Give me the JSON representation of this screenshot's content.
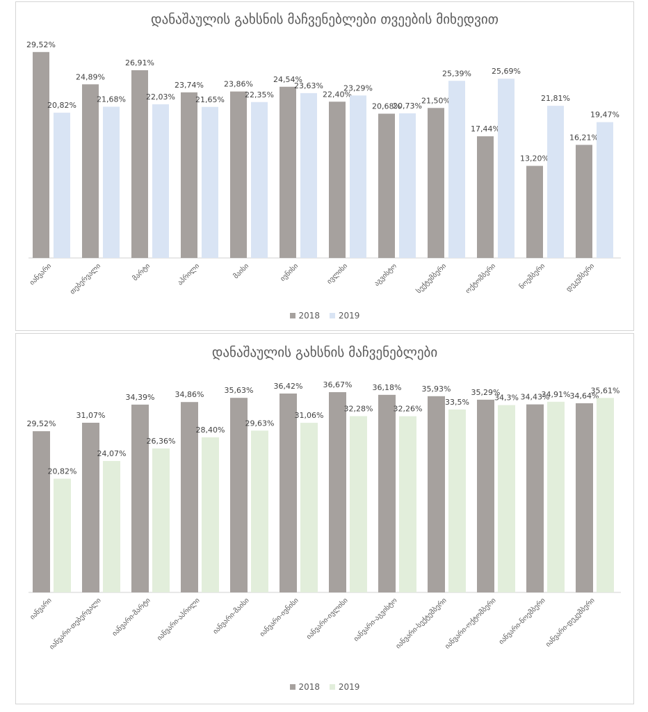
{
  "chart_data": [
    {
      "type": "bar",
      "title": "დანაშაულის გახსნის მაჩვენებლები თვეების მიხედვით",
      "categories": [
        "იანვარი",
        "თებერვალი",
        "მარტი",
        "აპრილი",
        "მაისი",
        "ივნისი",
        "ივლისი",
        "აგვისტო",
        "სექტემბერი",
        "ოქტომბერი",
        "ნოემბერი",
        "დეკემბერი"
      ],
      "series": [
        {
          "name": "2018",
          "color": "#a6a19e",
          "values": [
            29.52,
            24.89,
            26.91,
            23.74,
            23.86,
            24.54,
            22.4,
            20.68,
            21.5,
            17.44,
            13.2,
            16.21
          ],
          "labels": [
            "29,52%",
            "24,89%",
            "26,91%",
            "23,74%",
            "23,86%",
            "24,54%",
            "22,40%",
            "20,68%",
            "21,50%",
            "17,44%",
            "13,20%",
            "16,21%"
          ]
        },
        {
          "name": "2019",
          "color": "#d9e4f4",
          "values": [
            20.82,
            21.68,
            22.03,
            21.65,
            22.35,
            23.63,
            23.29,
            20.73,
            25.39,
            25.69,
            21.81,
            19.47
          ],
          "labels": [
            "20,82%",
            "21,68%",
            "22,03%",
            "21,65%",
            "22,35%",
            "23,63%",
            "23,29%",
            "20,73%",
            "25,39%",
            "25,69%",
            "21,81%",
            "19,47%"
          ]
        }
      ],
      "ylim": [
        0,
        30
      ],
      "grid": false,
      "legend": "bottom"
    },
    {
      "type": "bar",
      "title": "დანაშაულის გახსნის მაჩვენებლები",
      "categories": [
        "იანვარი",
        "იანვარი-თებერვალი",
        "იანვარი-მარტი",
        "იანვარი-აპრილი",
        "იანვარი-მაისი",
        "იანვარი-ივნისი",
        "იანვარი-ივლისი",
        "იანვარი-აგვისტო",
        "იანვარი-სექტემბერი",
        "იანვარი-ოქტომბერი",
        "იანვარი-ნოემბერი",
        "იანვარი-დეკემბერი"
      ],
      "series": [
        {
          "name": "2018",
          "color": "#a6a19e",
          "values": [
            29.52,
            31.07,
            34.39,
            34.86,
            35.63,
            36.42,
            36.67,
            36.18,
            35.93,
            35.29,
            34.43,
            34.64
          ],
          "labels": [
            "29,52%",
            "31,07%",
            "34,39%",
            "34,86%",
            "35,63%",
            "36,42%",
            "36,67%",
            "36,18%",
            "35,93%",
            "35,29%",
            "34,43%",
            "34,64%"
          ]
        },
        {
          "name": "2019",
          "color": "#e2eedb",
          "values": [
            20.82,
            24.07,
            26.36,
            28.4,
            29.63,
            31.06,
            32.28,
            32.26,
            33.5,
            34.3,
            34.91,
            35.61
          ],
          "labels": [
            "20,82%",
            "24,07%",
            "26,36%",
            "28,40%",
            "29,63%",
            "31,06%",
            "32,28%",
            "32,26%",
            "33,5%",
            "34,3%",
            "34,91%",
            "35,61%"
          ]
        }
      ],
      "ylim": [
        0,
        36.67
      ],
      "grid": false,
      "legend": "bottom"
    }
  ]
}
